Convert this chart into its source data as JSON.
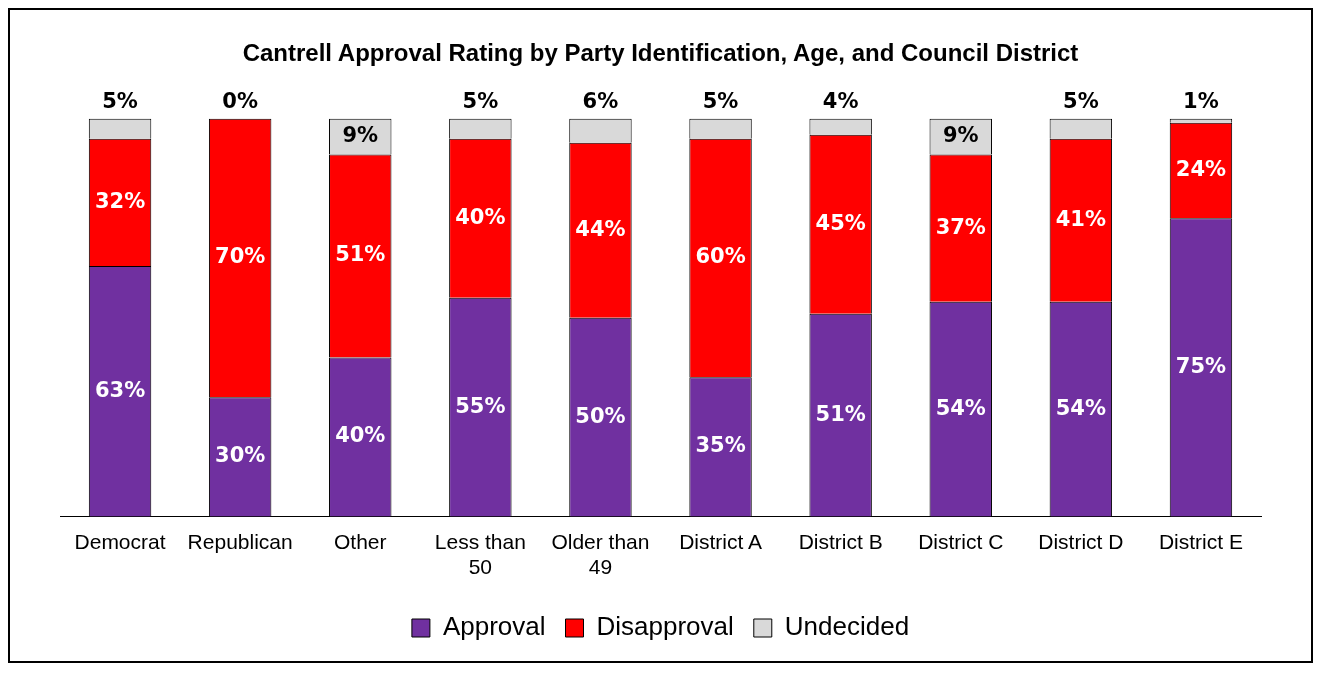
{
  "chart_data": {
    "type": "bar",
    "title": "Cantrell Approval Rating by Party Identification, Age, and Council District",
    "categories": [
      "Democrat",
      "Republican",
      "Other",
      "Less than 50",
      "Older than 49",
      "District A",
      "District B",
      "District C",
      "District D",
      "District E"
    ],
    "series": [
      {
        "name": "Approval",
        "color": "#7030a0",
        "values": [
          63,
          30,
          40,
          55,
          50,
          35,
          51,
          54,
          54,
          75
        ],
        "value_labels": [
          "63%",
          "30%",
          "40%",
          "55%",
          "50%",
          "35%",
          "51%",
          "54%",
          "54%",
          "75%"
        ]
      },
      {
        "name": "Disapproval",
        "color": "#ff0000",
        "values": [
          32,
          70,
          51,
          40,
          44,
          60,
          45,
          37,
          41,
          24
        ],
        "value_labels": [
          "32%",
          "70%",
          "51%",
          "40%",
          "44%",
          "60%",
          "45%",
          "37%",
          "41%",
          "24%"
        ]
      },
      {
        "name": "Undecided",
        "color": "#d9d9d9",
        "values": [
          5,
          0,
          9,
          5,
          6,
          5,
          4,
          9,
          5,
          1
        ],
        "value_labels": [
          "5%",
          "0%",
          "9%",
          "5%",
          "6%",
          "5%",
          "4%",
          "9%",
          "5%",
          "1%"
        ]
      }
    ],
    "stacked": true,
    "grid": false,
    "legend": "bottom"
  }
}
